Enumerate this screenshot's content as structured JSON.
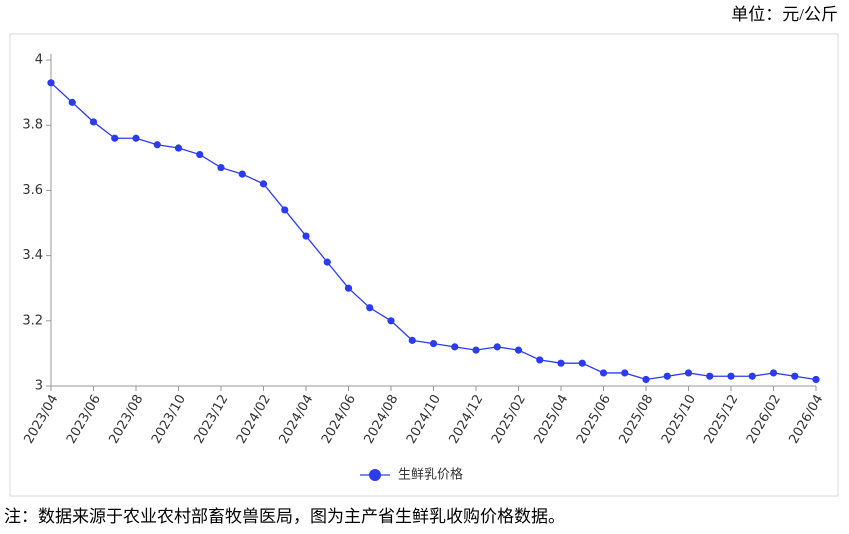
{
  "unit": "单位：元/公斤",
  "note": "注：数据来源于农业农村部畜牧兽医局，图为主产省生鲜乳收购价格数据。",
  "chart_data": {
    "type": "line",
    "categories": [
      "2023/04",
      null,
      "2023/06",
      null,
      "2023/08",
      null,
      "2023/10",
      null,
      "2023/12",
      null,
      "2024/02",
      null,
      "2024/04",
      null,
      "2024/06",
      null,
      "2024/08",
      null,
      "2024/10",
      null,
      "2024/12",
      null,
      "2025/02",
      null,
      "2025/04",
      null,
      "2025/06",
      null,
      "2025/08",
      null,
      "2025/10",
      null,
      "2025/12",
      null,
      "2026/02",
      null,
      "2026/04"
    ],
    "series": [
      {
        "name": "生鲜乳价格",
        "color": "#2b3cf0",
        "values": [
          3.93,
          3.87,
          3.81,
          3.76,
          3.76,
          3.74,
          3.73,
          3.71,
          3.67,
          3.65,
          3.62,
          3.54,
          3.46,
          3.38,
          3.3,
          3.24,
          3.2,
          3.14,
          3.13,
          3.12,
          3.11,
          3.12,
          3.11,
          3.08,
          3.07,
          3.07,
          3.04,
          3.04,
          3.02,
          3.03,
          3.04,
          3.03,
          3.03,
          3.03,
          3.04,
          3.03,
          3.02
        ]
      }
    ],
    "ylim": [
      3,
      4
    ],
    "yticks": [
      3,
      3.2,
      3.4,
      3.6,
      3.8,
      4
    ],
    "grid": false,
    "legend": "bottom"
  }
}
